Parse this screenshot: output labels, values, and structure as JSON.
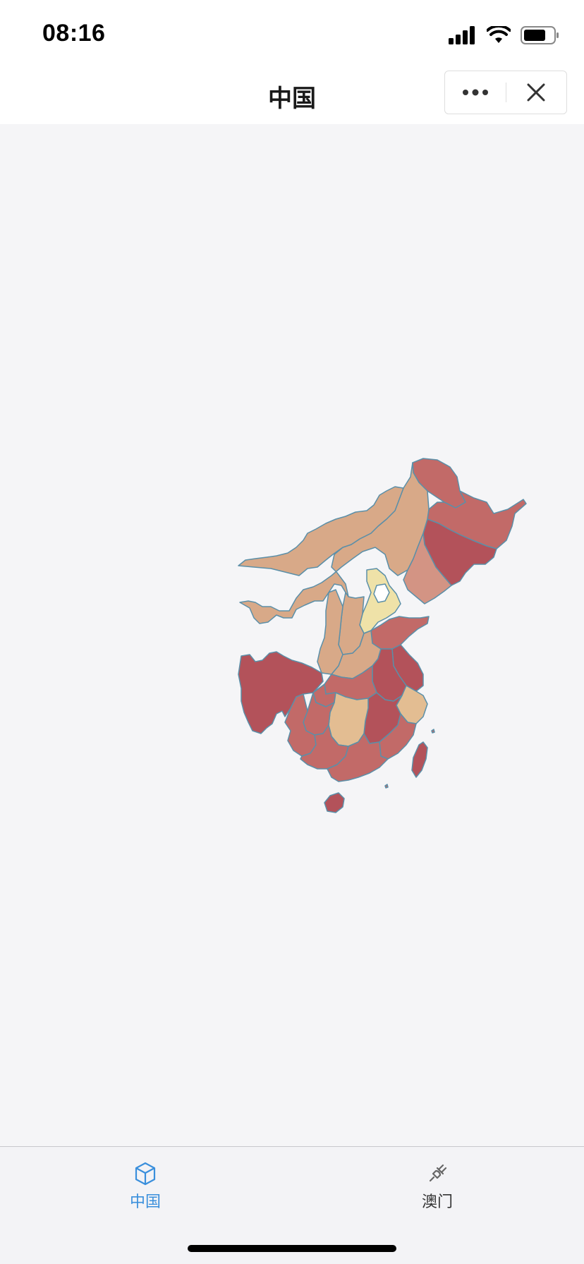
{
  "status_bar": {
    "time": "08:16"
  },
  "nav": {
    "title": "中国",
    "more_icon": "more-dots-icon",
    "close_icon": "close-icon"
  },
  "map": {
    "colors": {
      "border": "#5b8fa8",
      "deep_red": "#b3525a",
      "red": "#c26a68",
      "salmon": "#d39484",
      "tan": "#d8a988",
      "light_tan": "#e3bd92",
      "pale_yellow": "#efe2a8"
    }
  },
  "tabs": [
    {
      "label": "中国",
      "icon": "cube-icon",
      "active": true
    },
    {
      "label": "澳门",
      "icon": "plug-icon",
      "active": false
    }
  ]
}
